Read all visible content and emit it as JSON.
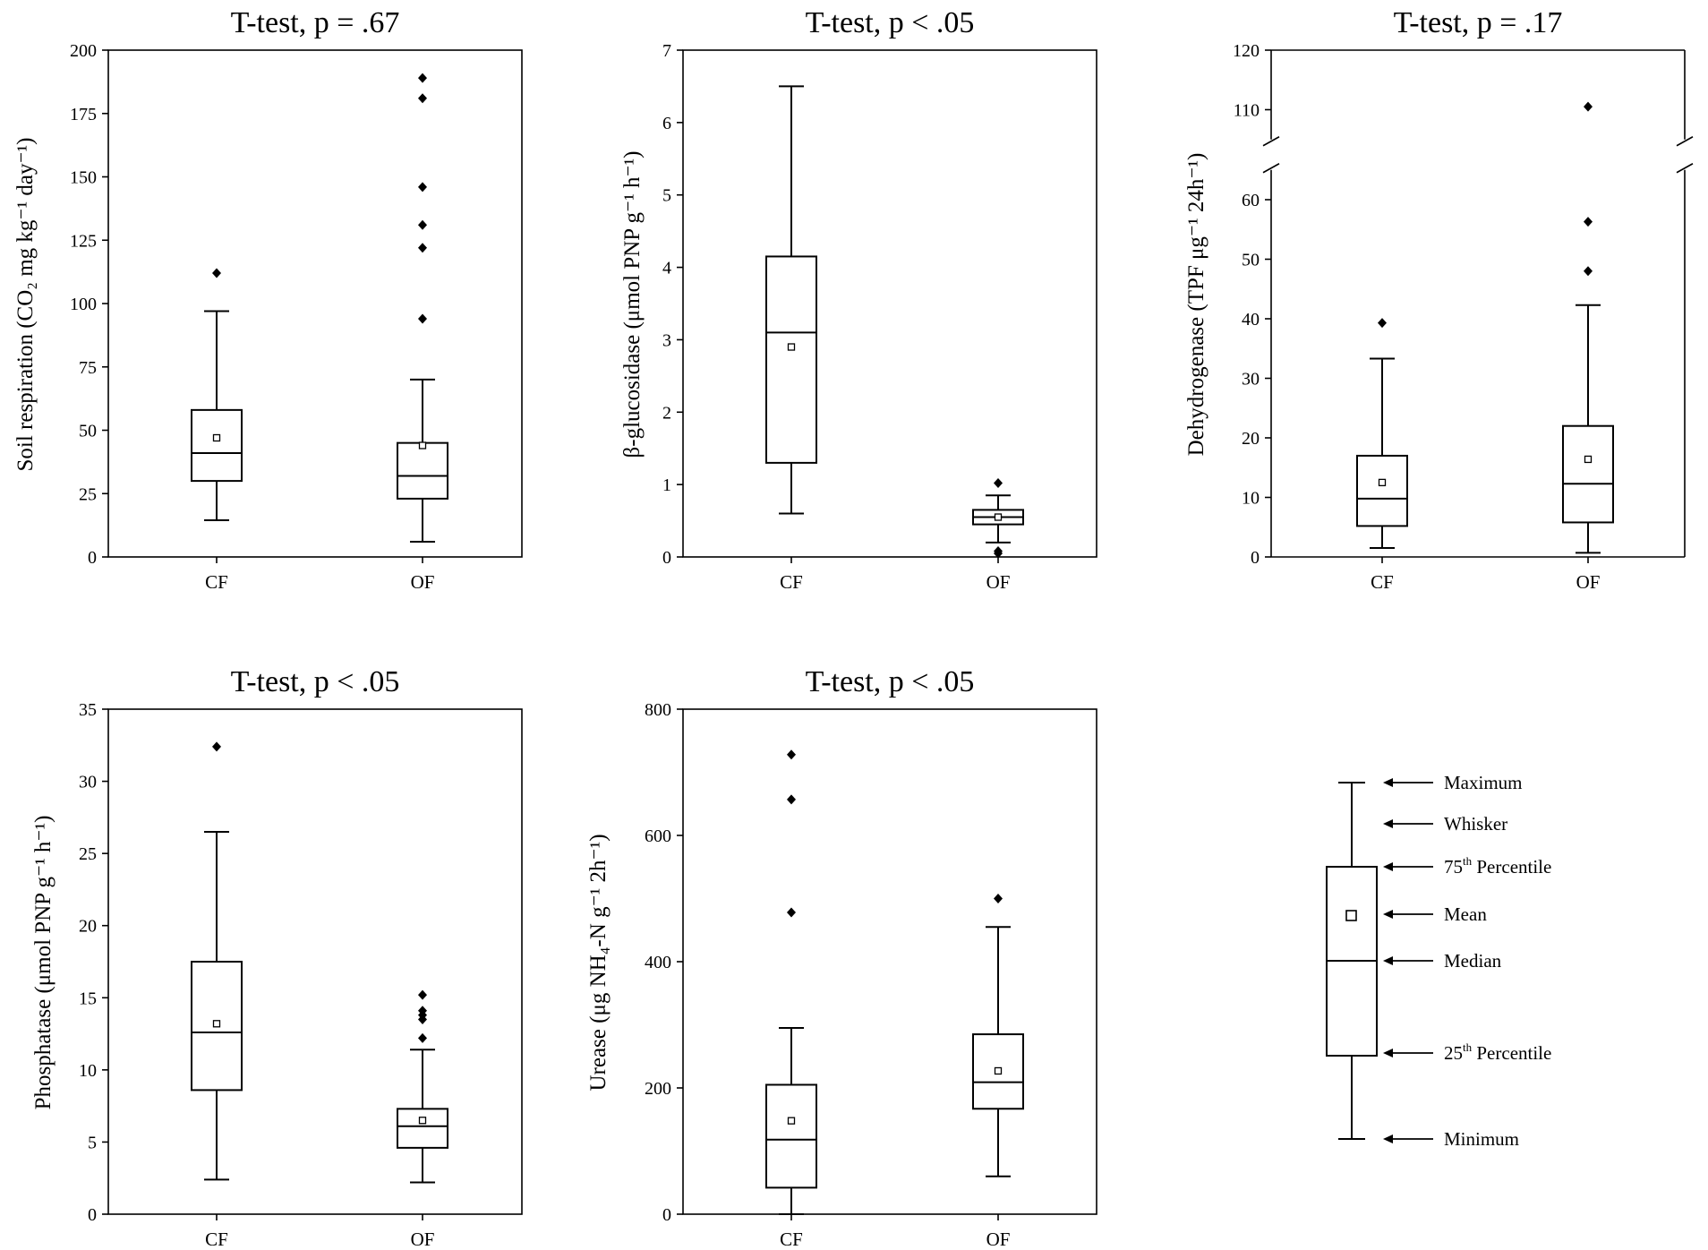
{
  "legend": {
    "labels": [
      {
        "text": "Maximum",
        "sup": ""
      },
      {
        "text": "Whisker",
        "sup": ""
      },
      {
        "text": "75",
        "sup": "th",
        "rest": " Percentile"
      },
      {
        "text": "Mean",
        "sup": ""
      },
      {
        "text": "Median",
        "sup": ""
      },
      {
        "text": "25",
        "sup": "th",
        "rest": " Percentile"
      },
      {
        "text": "Minimum",
        "sup": ""
      }
    ]
  },
  "chart_data": [
    {
      "type": "box",
      "title": "T-test, p = .67",
      "ylabel": "Soil respiration (CO₂ mg kg⁻¹ day⁻¹)",
      "ylim": [
        0,
        200
      ],
      "yticks": [
        0,
        25,
        50,
        75,
        100,
        125,
        150,
        175,
        200
      ],
      "categories": [
        "CF",
        "OF"
      ],
      "boxes": [
        {
          "name": "CF",
          "min": 14.5,
          "q1": 30,
          "median": 41,
          "q3": 58,
          "max": 97,
          "mean": 47,
          "outliers": [
            112
          ]
        },
        {
          "name": "OF",
          "min": 6,
          "q1": 23,
          "median": 32,
          "q3": 45,
          "max": 70,
          "mean": 44,
          "outliers": [
            94,
            122,
            131,
            146,
            181,
            189
          ]
        }
      ]
    },
    {
      "type": "box",
      "title": "T-test, p < .05",
      "ylabel": "β-glucosidase (μmol PNP g⁻¹ h⁻¹)",
      "ylim": [
        0,
        7
      ],
      "yticks": [
        0,
        1,
        2,
        3,
        4,
        5,
        6,
        7
      ],
      "categories": [
        "CF",
        "OF"
      ],
      "boxes": [
        {
          "name": "CF",
          "min": 0.6,
          "q1": 1.3,
          "median": 3.1,
          "q3": 4.15,
          "max": 6.5,
          "mean": 2.9,
          "outliers": []
        },
        {
          "name": "OF",
          "min": 0.2,
          "q1": 0.45,
          "median": 0.55,
          "q3": 0.65,
          "max": 0.85,
          "mean": 0.55,
          "outliers": [
            1.02,
            0.08,
            0.05
          ]
        }
      ]
    },
    {
      "type": "box",
      "title": "T-test, p = .17",
      "ylabel": "Dehydrogenase (TPF μg⁻¹ 24h⁻¹)",
      "ylim": [
        0,
        120
      ],
      "axis_break": [
        65,
        105
      ],
      "yticks": [
        0,
        10,
        20,
        30,
        40,
        50,
        60,
        110,
        120
      ],
      "categories": [
        "CF",
        "OF"
      ],
      "boxes": [
        {
          "name": "CF",
          "min": 1.5,
          "q1": 5.2,
          "median": 9.8,
          "q3": 17,
          "max": 33.3,
          "mean": 12.5,
          "outliers": [
            39.3
          ]
        },
        {
          "name": "OF",
          "min": 0.7,
          "q1": 5.8,
          "median": 12.3,
          "q3": 22,
          "max": 42.3,
          "mean": 16.4,
          "outliers": [
            48,
            56.3,
            110.5
          ]
        }
      ]
    },
    {
      "type": "box",
      "title": "T-test, p < .05",
      "ylabel": "Phosphatase (μmol PNP g⁻¹ h⁻¹)",
      "ylim": [
        0,
        35
      ],
      "yticks": [
        0,
        5,
        10,
        15,
        20,
        25,
        30,
        35
      ],
      "categories": [
        "CF",
        "OF"
      ],
      "boxes": [
        {
          "name": "CF",
          "min": 2.4,
          "q1": 8.6,
          "median": 12.6,
          "q3": 17.5,
          "max": 26.5,
          "mean": 13.2,
          "outliers": [
            32.4
          ]
        },
        {
          "name": "OF",
          "min": 2.2,
          "q1": 4.6,
          "median": 6.1,
          "q3": 7.3,
          "max": 11.4,
          "mean": 6.5,
          "outliers": [
            12.2,
            13.5,
            13.8,
            14.1,
            15.2
          ]
        }
      ]
    },
    {
      "type": "box",
      "title": "T-test, p < .05",
      "ylabel": "Urease (μg NH₄-N g⁻¹ 2h⁻¹)",
      "ylim": [
        0,
        800
      ],
      "yticks": [
        0,
        200,
        400,
        600,
        800
      ],
      "categories": [
        "CF",
        "OF"
      ],
      "boxes": [
        {
          "name": "CF",
          "min": 0,
          "q1": 42,
          "median": 118,
          "q3": 205,
          "max": 295,
          "mean": 148,
          "outliers": [
            478,
            657,
            728
          ]
        },
        {
          "name": "OF",
          "min": 60,
          "q1": 167,
          "median": 209,
          "q3": 285,
          "max": 455,
          "mean": 227,
          "outliers": [
            500
          ]
        }
      ]
    }
  ]
}
